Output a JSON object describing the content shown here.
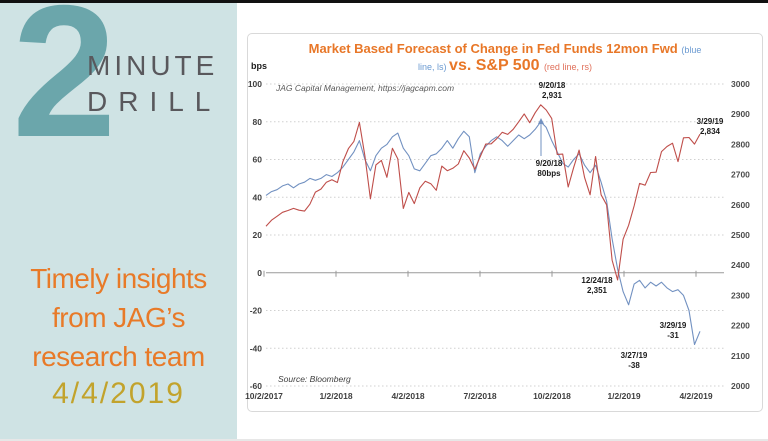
{
  "brand": {
    "big_digit": "2",
    "word1": "MINUTE",
    "word2": "DRILL",
    "tagline_line1": "Timely insights",
    "tagline_line2": "from JAG’s",
    "tagline_line3": "research team",
    "date": "4/4/2019"
  },
  "colors": {
    "accent_orange": "#e87728",
    "accent_teal": "#6ba6ab",
    "panel_background": "#cfe3e4",
    "date_gold": "#c2a32c",
    "fed_line_blue": "#7291c1",
    "sp_line_red": "#bf4e4a"
  },
  "chart": {
    "title_part1": "Market Based Forecast of Change in Fed Funds 12mon Fwd ",
    "title_blue_open": "(blue",
    "title_blue_close": "line, ls) ",
    "title_part2": "vs. S&P 500 ",
    "title_red_paren": "(red line, rs)",
    "axis_unit": "bps",
    "credit": "JAG Capital Management, https://jagcapm.com",
    "source": "Source: Bloomberg",
    "annotations": {
      "sp_peak": {
        "l1": "9/20/18",
        "l2": "2,931"
      },
      "fed_peak": {
        "l1": "9/20/18",
        "l2": "80bps"
      },
      "sp_low": {
        "l1": "12/24/18",
        "l2": "2,351"
      },
      "fed_end": {
        "l1": "3/29/19",
        "l2": "-31"
      },
      "fed_min": {
        "l1": "3/27/19",
        "l2": "-38"
      },
      "sp_end": {
        "l1": "3/29/19",
        "l2": "2,834"
      }
    }
  },
  "chart_data": {
    "type": "line",
    "title": "Market Based Forecast of Change in Fed Funds 12mon Fwd (blue line, ls) vs. S&P 500 (red line, rs)",
    "x_tick_labels": [
      "10/2/2017",
      "1/2/2018",
      "4/2/2018",
      "7/2/2018",
      "10/2/2018",
      "1/2/2019",
      "4/2/2019"
    ],
    "y_left": {
      "label": "bps",
      "ticks": [
        100,
        80,
        60,
        40,
        20,
        0,
        -20,
        -40,
        -60
      ],
      "range": [
        -60,
        100
      ]
    },
    "y_right": {
      "label": "S&P 500",
      "ticks": [
        3000,
        2900,
        2800,
        2700,
        2600,
        2500,
        2400,
        2300,
        2200,
        2100,
        2000
      ],
      "range": [
        2000,
        3000
      ]
    },
    "grid": "horizontal dotted, solid zero line",
    "legend_position": "none (described in title)",
    "series": [
      {
        "name": "Fed Funds 12mon Fwd change forecast (bps)",
        "axis": "left",
        "color": "#7291c1",
        "values": [
          41,
          43,
          44,
          46,
          47,
          45,
          47,
          48,
          50,
          49,
          50,
          52,
          51,
          53,
          56,
          60,
          64,
          70,
          60,
          54,
          62,
          66,
          68,
          72,
          74,
          66,
          62,
          55,
          54,
          58,
          62,
          63,
          66,
          70,
          66,
          71,
          75,
          72,
          53,
          63,
          67,
          70,
          72,
          70,
          67,
          70,
          73,
          71,
          73,
          76,
          80,
          77,
          70,
          64,
          58,
          56,
          60,
          63,
          57,
          53,
          57,
          48,
          38,
          18,
          2,
          -10,
          -17,
          -6,
          -4,
          -8,
          -5,
          -7,
          -5,
          -8,
          -10,
          -9,
          -12,
          -20,
          -38,
          -31
        ]
      },
      {
        "name": "S&P 500",
        "axis": "right",
        "color": "#bf4e4a",
        "values": [
          2529,
          2549,
          2562,
          2575,
          2581,
          2588,
          2582,
          2579,
          2602,
          2642,
          2652,
          2675,
          2683,
          2674,
          2743,
          2786,
          2810,
          2873,
          2762,
          2620,
          2732,
          2747,
          2691,
          2787,
          2752,
          2588,
          2641,
          2604,
          2656,
          2678,
          2670,
          2648,
          2728,
          2713,
          2721,
          2735,
          2779,
          2755,
          2718,
          2760,
          2801,
          2802,
          2819,
          2840,
          2833,
          2850,
          2875,
          2901,
          2872,
          2905,
          2931,
          2914,
          2886,
          2767,
          2768,
          2659,
          2723,
          2781,
          2690,
          2633,
          2760,
          2633,
          2600,
          2417,
          2351,
          2486,
          2532,
          2596,
          2671,
          2665,
          2707,
          2708,
          2776,
          2793,
          2804,
          2743,
          2822,
          2823,
          2801,
          2834
        ]
      }
    ]
  }
}
